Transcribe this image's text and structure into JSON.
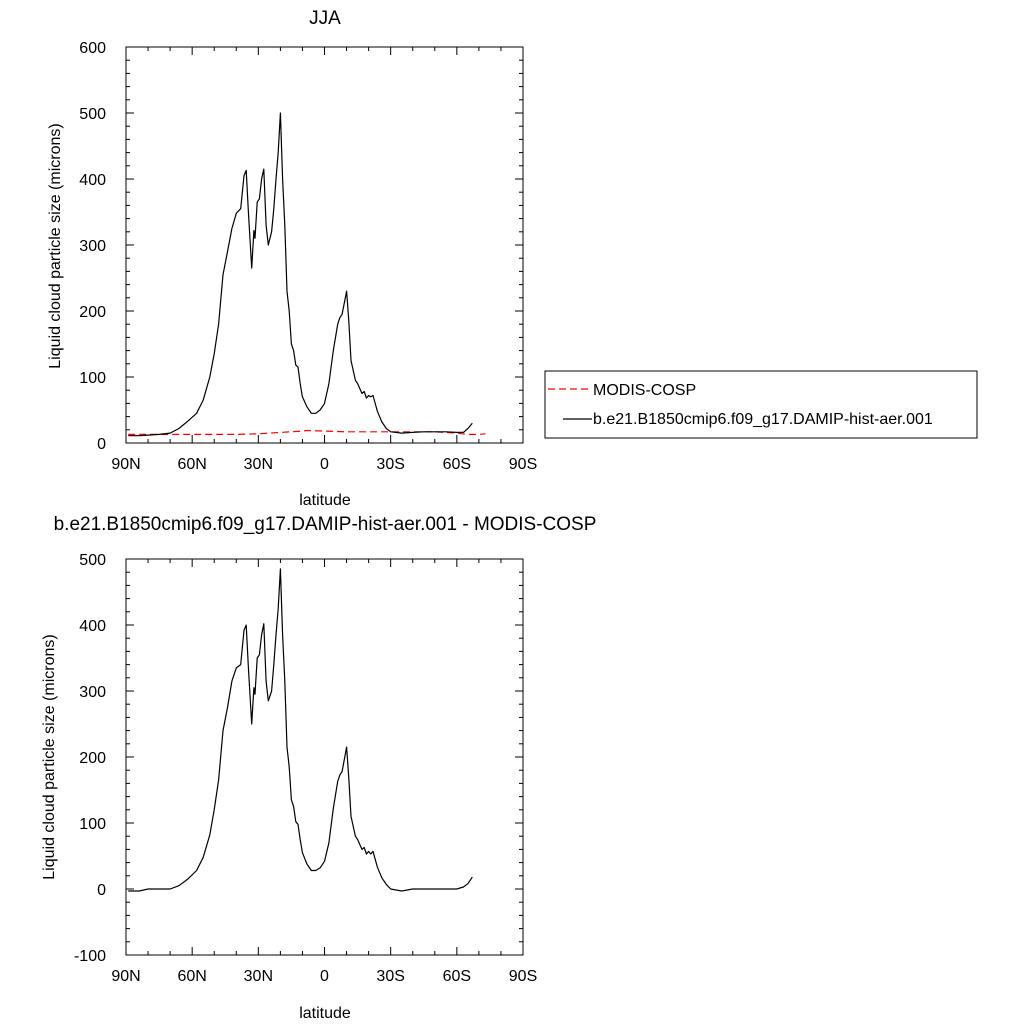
{
  "chart_data": [
    {
      "type": "line",
      "title": "JJA",
      "xlabel": "latitude",
      "ylabel": "Liquid cloud particle size (microns)",
      "xlim": [
        90,
        -90
      ],
      "ylim": [
        0,
        600
      ],
      "xticks": [
        90,
        60,
        30,
        0,
        -30,
        -60,
        -90
      ],
      "xtick_labels": [
        "90N",
        "60N",
        "30N",
        "0",
        "30S",
        "60S",
        "90S"
      ],
      "yticks": [
        0,
        100,
        200,
        300,
        400,
        500,
        600
      ],
      "ytick_labels": [
        "0",
        "100",
        "200",
        "300",
        "400",
        "500",
        "600"
      ],
      "grid": false,
      "legend_position": "right",
      "series": [
        {
          "name": "MODIS-COSP",
          "color": "#ff0000",
          "dash": "dashed",
          "x": [
            89,
            80,
            70,
            60,
            50,
            40,
            30,
            20,
            10,
            8,
            0,
            -10,
            -20,
            -30,
            -40,
            -50,
            -60,
            -65,
            -70,
            -73
          ],
          "y": [
            13,
            13,
            13,
            13,
            13,
            13,
            14,
            16,
            18,
            19,
            18,
            17,
            17,
            17,
            17,
            17,
            15,
            13,
            13,
            14
          ]
        },
        {
          "name": "b.e21.B1850cmip6.f09_g17.DAMIP-hist-aer.001",
          "color": "#000000",
          "dash": "solid",
          "x": [
            89,
            84,
            80,
            75,
            70,
            66,
            62,
            58,
            55,
            52,
            50,
            48,
            46,
            44,
            42,
            40,
            38,
            36.5,
            35.5,
            34.5,
            33,
            32,
            31.5,
            30.5,
            29.5,
            28.5,
            27.5,
            26.5,
            25.5,
            24,
            23,
            22,
            21,
            20,
            19,
            18,
            17,
            16,
            15,
            14,
            13,
            12,
            11,
            10,
            8,
            6,
            4,
            2,
            0,
            -2,
            -4,
            -6,
            -7,
            -8,
            -10,
            -11,
            -12,
            -13,
            -14,
            -15,
            -17,
            -18,
            -19,
            -20,
            -21,
            -22,
            -23,
            -24,
            -26,
            -28,
            -30,
            -35,
            -40,
            -45,
            -50,
            -55,
            -60,
            -63,
            -65,
            -67
          ],
          "y": [
            11,
            11,
            12,
            13,
            15,
            22,
            33,
            45,
            65,
            100,
            135,
            180,
            255,
            290,
            325,
            348,
            355,
            405,
            413,
            350,
            265,
            322,
            310,
            365,
            370,
            400,
            415,
            330,
            300,
            320,
            355,
            400,
            440,
            500,
            400,
            330,
            230,
            200,
            150,
            140,
            118,
            115,
            90,
            70,
            55,
            45,
            45,
            50,
            60,
            90,
            140,
            180,
            190,
            195,
            230,
            185,
            125,
            110,
            95,
            90,
            75,
            78,
            68,
            72,
            70,
            72,
            60,
            48,
            32,
            22,
            17,
            15,
            16,
            17,
            17,
            17,
            16,
            16,
            22,
            30
          ]
        }
      ]
    },
    {
      "type": "line",
      "title": "b.e21.B1850cmip6.f09_g17.DAMIP-hist-aer.001 - MODIS-COSP",
      "xlabel": "latitude",
      "ylabel": "Liquid cloud particle size (microns)",
      "xlim": [
        90,
        -90
      ],
      "ylim": [
        -100,
        500
      ],
      "xticks": [
        90,
        60,
        30,
        0,
        -30,
        -60,
        -90
      ],
      "xtick_labels": [
        "90N",
        "60N",
        "30N",
        "0",
        "30S",
        "60S",
        "90S"
      ],
      "yticks": [
        -100,
        0,
        100,
        200,
        300,
        400,
        500
      ],
      "ytick_labels": [
        "-100",
        "0",
        "100",
        "200",
        "300",
        "400",
        "500"
      ],
      "grid": false,
      "series": [
        {
          "color": "#000000",
          "dash": "solid",
          "x": [
            89,
            84,
            80,
            75,
            70,
            66,
            62,
            58,
            55,
            52,
            50,
            48,
            46,
            44,
            42,
            40,
            38,
            36.5,
            35.5,
            34.5,
            33,
            32,
            31.5,
            30.5,
            29.5,
            28.5,
            27.5,
            26.5,
            25.5,
            24,
            23,
            22,
            21,
            20,
            19,
            18,
            17,
            16,
            15,
            14,
            13,
            12,
            11,
            10,
            8,
            6,
            4,
            2,
            0,
            -2,
            -4,
            -6,
            -7,
            -8,
            -10,
            -11,
            -12,
            -13,
            -14,
            -15,
            -17,
            -18,
            -19,
            -20,
            -21,
            -22,
            -23,
            -24,
            -26,
            -28,
            -30,
            -35,
            -40,
            -45,
            -50,
            -55,
            -60,
            -63,
            -65,
            -67
          ],
          "y": [
            -3,
            -3,
            0,
            0,
            0,
            5,
            15,
            28,
            48,
            82,
            120,
            165,
            240,
            275,
            315,
            335,
            340,
            392,
            400,
            335,
            250,
            305,
            295,
            350,
            355,
            385,
            402,
            315,
            285,
            300,
            340,
            385,
            425,
            485,
            385,
            315,
            215,
            185,
            135,
            125,
            102,
            98,
            75,
            55,
            38,
            28,
            28,
            32,
            42,
            70,
            122,
            163,
            173,
            178,
            215,
            168,
            110,
            95,
            80,
            75,
            60,
            63,
            53,
            57,
            53,
            57,
            45,
            33,
            17,
            7,
            0,
            -3,
            0,
            0,
            0,
            0,
            0,
            3,
            8,
            18
          ]
        }
      ]
    }
  ]
}
